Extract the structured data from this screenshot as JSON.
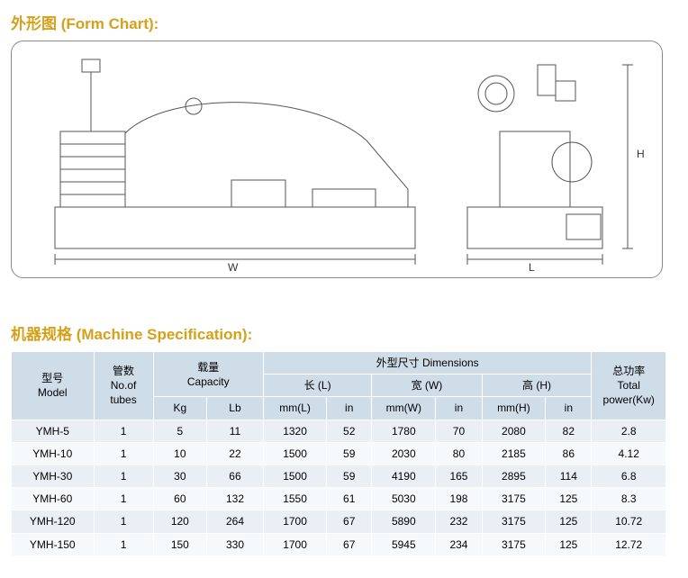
{
  "colors": {
    "title": "#d6a019",
    "hdr_bg": "#cfdde9",
    "row_alt": "#e9eff5",
    "row_base": "#f6f9fb"
  },
  "form_chart": {
    "title": "外形图 (Form Chart):",
    "dim_W": "W",
    "dim_L": "L",
    "dim_H": "H"
  },
  "spec": {
    "title": "机器规格 (Machine  Specification):",
    "headers": {
      "model": "型号\nModel",
      "tubes": "管数\nNo.of\ntubes",
      "capacity": "载量\nCapacity",
      "kg": "Kg",
      "lb": "Lb",
      "dimensions": "外型尺寸 Dimensions",
      "length": "长 (L)",
      "width": "宽 (W)",
      "height": "高 (H)",
      "mmL": "mm(L)",
      "mmW": "mm(W)",
      "mmH": "mm(H)",
      "in": "in",
      "power": "总功率\nTotal\npower(Kw)"
    },
    "rows": [
      {
        "model": "YMH-5",
        "tubes": "1",
        "kg": "5",
        "lb": "11",
        "mmL": "1320",
        "inL": "52",
        "mmW": "1780",
        "inW": "70",
        "mmH": "2080",
        "inH": "82",
        "power": "2.8"
      },
      {
        "model": "YMH-10",
        "tubes": "1",
        "kg": "10",
        "lb": "22",
        "mmL": "1500",
        "inL": "59",
        "mmW": "2030",
        "inW": "80",
        "mmH": "2185",
        "inH": "86",
        "power": "4.12"
      },
      {
        "model": "YMH-30",
        "tubes": "1",
        "kg": "30",
        "lb": "66",
        "mmL": "1500",
        "inL": "59",
        "mmW": "4190",
        "inW": "165",
        "mmH": "2895",
        "inH": "114",
        "power": "6.8"
      },
      {
        "model": "YMH-60",
        "tubes": "1",
        "kg": "60",
        "lb": "132",
        "mmL": "1550",
        "inL": "61",
        "mmW": "5030",
        "inW": "198",
        "mmH": "3175",
        "inH": "125",
        "power": "8.3"
      },
      {
        "model": "YMH-120",
        "tubes": "1",
        "kg": "120",
        "lb": "264",
        "mmL": "1700",
        "inL": "67",
        "mmW": "5890",
        "inW": "232",
        "mmH": "3175",
        "inH": "125",
        "power": "10.72"
      },
      {
        "model": "YMH-150",
        "tubes": "1",
        "kg": "150",
        "lb": "330",
        "mmL": "1700",
        "inL": "67",
        "mmW": "5945",
        "inW": "234",
        "mmH": "3175",
        "inH": "125",
        "power": "12.72"
      }
    ]
  }
}
